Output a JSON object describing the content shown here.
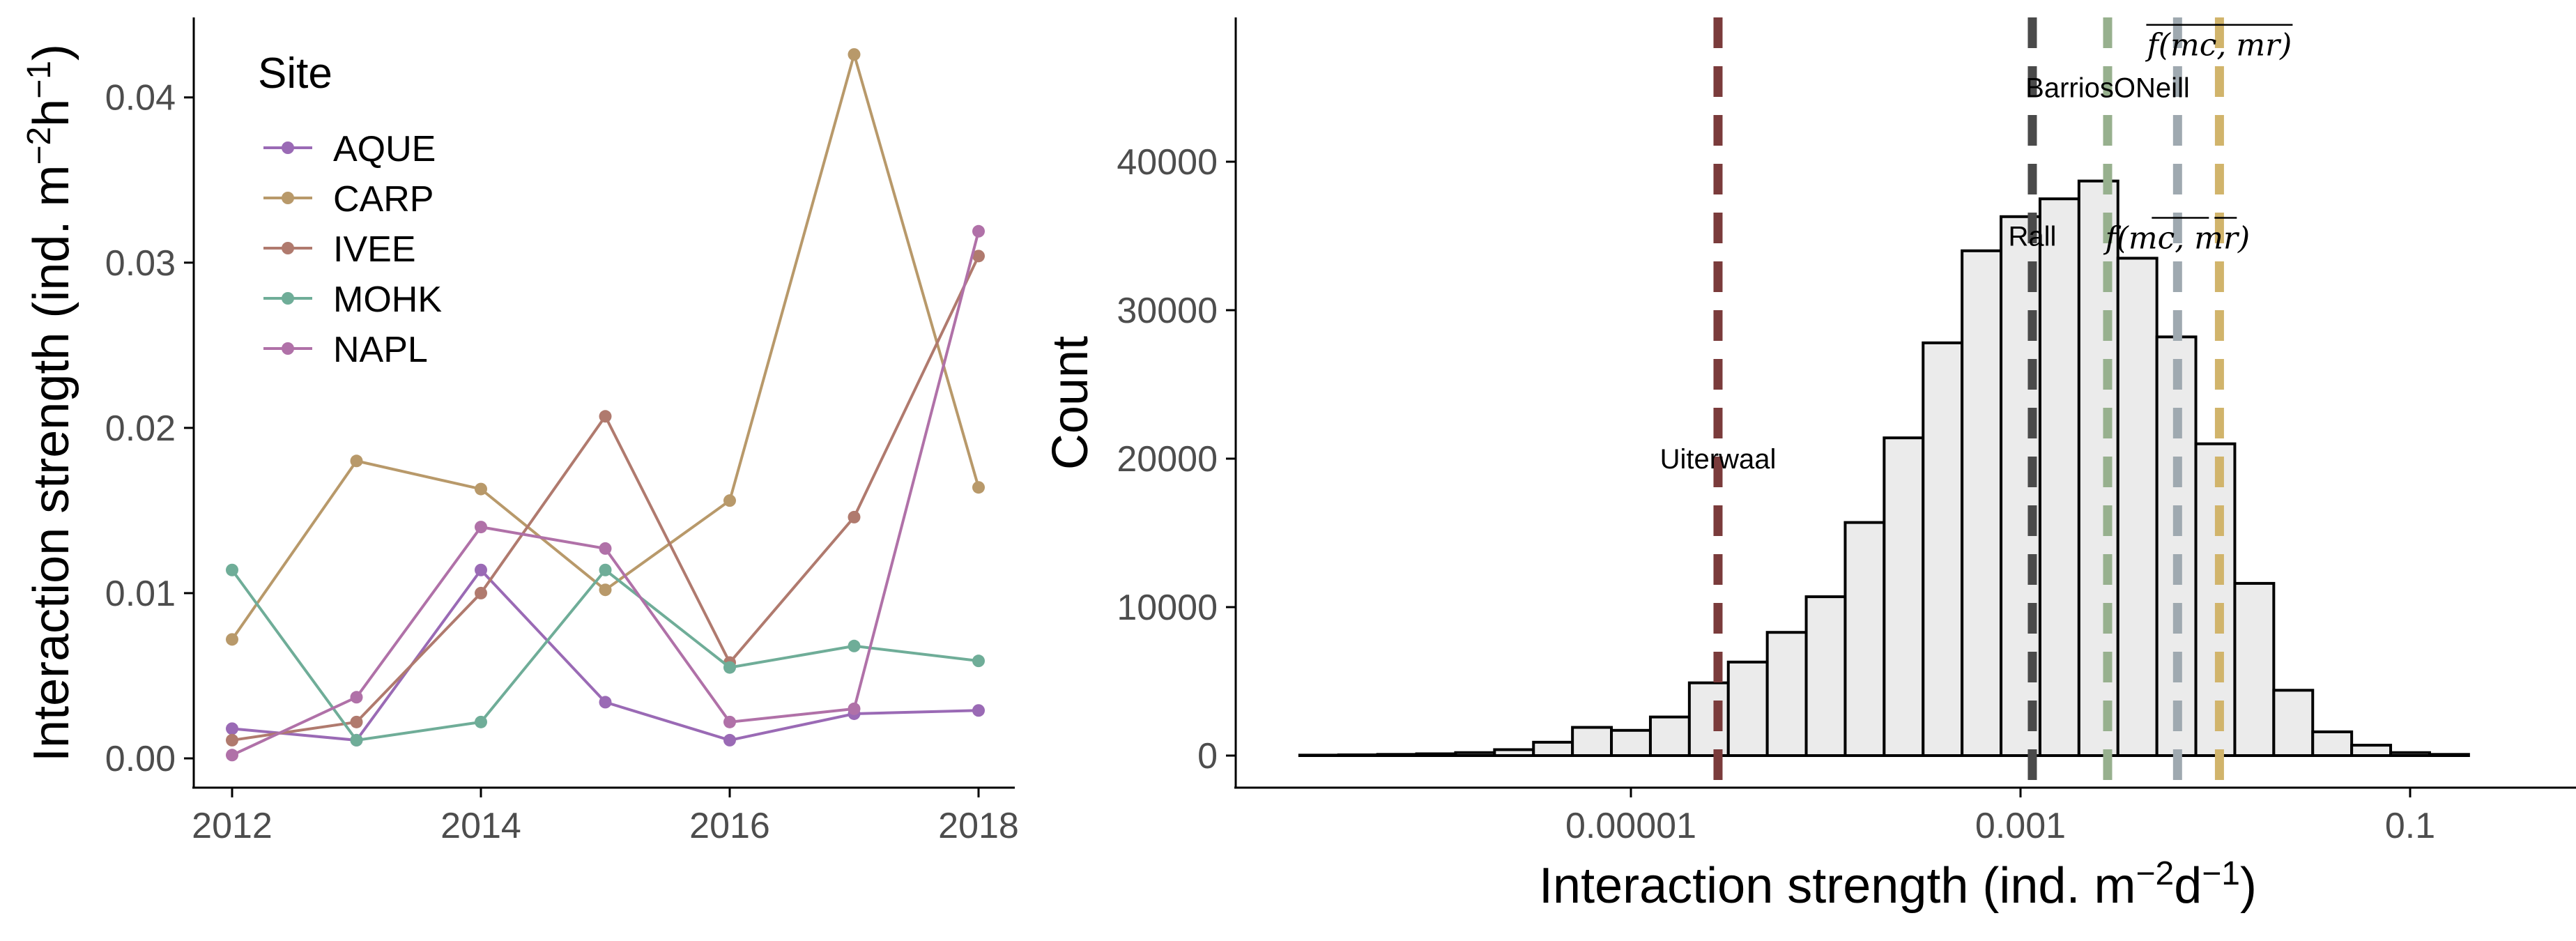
{
  "chart_data": [
    {
      "type": "line",
      "x": [
        2012,
        2013,
        2014,
        2015,
        2016,
        2017,
        2018
      ],
      "xticks": [
        "2012",
        "2014",
        "2016",
        "2018"
      ],
      "yticks": [
        "0.00",
        "0.01",
        "0.02",
        "0.03",
        "0.04"
      ],
      "ylim": [
        0,
        0.044
      ],
      "xlim": [
        2012,
        2018
      ],
      "ylabel": "Interaction strength (ind. m",
      "ylabel_sup1": "−2",
      "ylabel_mid": "h",
      "ylabel_sup2": "−1",
      "ylabel_end": ")",
      "grid": false,
      "legend": {
        "title": "Site",
        "placement": "top-left"
      },
      "series": [
        {
          "name": "AQUE",
          "color": "#9a6ab5",
          "values": [
            0.0018,
            0.0011,
            0.0114,
            0.0034,
            0.0011,
            0.0027,
            0.0029
          ]
        },
        {
          "name": "CARP",
          "color": "#b8996a",
          "values": [
            0.0072,
            0.018,
            0.0163,
            0.0102,
            0.0156,
            0.0426,
            0.0164
          ]
        },
        {
          "name": "IVEE",
          "color": "#b07a6e",
          "values": [
            0.0011,
            0.0022,
            0.01,
            0.0207,
            0.0058,
            0.0146,
            0.0304
          ]
        },
        {
          "name": "MOHK",
          "color": "#6fad98",
          "values": [
            0.0114,
            0.0011,
            0.0022,
            0.0114,
            0.0055,
            0.0068,
            0.0059
          ]
        },
        {
          "name": "NAPL",
          "color": "#b071a8",
          "values": [
            0.0002,
            0.0037,
            0.014,
            0.0127,
            0.0022,
            0.003,
            0.0319
          ]
        }
      ]
    },
    {
      "type": "bar",
      "subtype": "histogram",
      "x_scale": "log10",
      "xlim": [
        2e-07,
        0.8
      ],
      "ylim": [
        0,
        46000
      ],
      "xticks": [
        {
          "value": 1e-05,
          "label": "0.00001"
        },
        {
          "value": 0.001,
          "label": "0.001"
        },
        {
          "value": 0.1,
          "label": "0.1"
        }
      ],
      "yticks": [
        "0",
        "10000",
        "20000",
        "30000",
        "40000"
      ],
      "ylabel": "Count",
      "xlabel": "Interaction strength (ind. m",
      "xlabel_sup1": "−2",
      "xlabel_mid": "d",
      "xlabel_sup2": "−1",
      "xlabel_end": ")",
      "grid": false,
      "bin_width_log10": 0.2,
      "bin_start_log10": -6.7,
      "counts": [
        30,
        50,
        80,
        120,
        200,
        400,
        900,
        1900,
        1700,
        2600,
        4900,
        6300,
        8300,
        10700,
        15700,
        21400,
        27800,
        34000,
        36300,
        37500,
        38700,
        33500,
        28200,
        21000,
        11600,
        4400,
        1600,
        700,
        200,
        80
      ],
      "bar_fill": "#ebebeb",
      "bar_stroke": "#000000",
      "reference_lines": [
        {
          "name": "Uiterwaal",
          "label": "Uiterwaal",
          "value": 2.8e-05,
          "color": "#7a3b3b",
          "label_count": 20000
        },
        {
          "name": "Rall",
          "label": "Rall",
          "value": 0.00115,
          "color": "#4a4a4a",
          "label_count": 35000
        },
        {
          "name": "BarriosONeill",
          "label": "BarriosONeill",
          "value": 0.0028,
          "color": "#97b08e",
          "label_count": 45000
        },
        {
          "name": "mean-ratio",
          "label": "f(mc, mr)",
          "overline": "bar",
          "value": 0.0064,
          "color": "#9fa9b0",
          "label_count": 35000
        },
        {
          "name": "ratio-of-means",
          "label": "f(mc, mr)",
          "overline": "whole",
          "value": 0.0105,
          "color": "#d1b46b",
          "label_count": 48000
        }
      ]
    }
  ]
}
